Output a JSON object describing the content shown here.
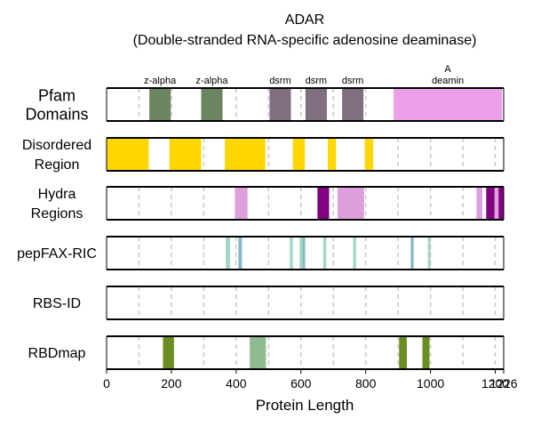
{
  "chart_data": {
    "type": "bar",
    "title": "ADAR",
    "subtitle": "(Double-stranded RNA-specific adenosine deaminase)",
    "xlabel": "Protein Length",
    "xlim": [
      0,
      1226
    ],
    "protein_length": 1226,
    "grid": true,
    "xticks": [
      0,
      200,
      400,
      600,
      800,
      1000,
      1200,
      1226
    ],
    "xtick_labels": [
      "0",
      "200",
      "400",
      "600",
      "800",
      "1000",
      "1200",
      "1226"
    ],
    "grid_lines": [
      100,
      200,
      300,
      400,
      500,
      600,
      700,
      800,
      900,
      1000,
      1100,
      1200
    ],
    "tracks": [
      {
        "label_lines": [
          "Pfam",
          "Domains"
        ],
        "segments": [
          {
            "start": 132,
            "end": 198,
            "color": "#6b8560",
            "name": "z-alpha"
          },
          {
            "start": 292,
            "end": 358,
            "color": "#6b8560",
            "name": "z-alpha"
          },
          {
            "start": 503,
            "end": 569,
            "color": "#80707f",
            "name": "dsrm"
          },
          {
            "start": 614,
            "end": 680,
            "color": "#80707f",
            "name": "dsrm"
          },
          {
            "start": 727,
            "end": 793,
            "color": "#80707f",
            "name": "dsrm"
          },
          {
            "start": 886,
            "end": 1221,
            "color": "#eca0ea",
            "name": "A\ndeamin"
          }
        ]
      },
      {
        "label_lines": [
          "Disordered",
          "Region"
        ],
        "segments": [
          {
            "start": 1,
            "end": 130,
            "color": "#ffd700"
          },
          {
            "start": 194,
            "end": 292,
            "color": "#ffd700"
          },
          {
            "start": 365,
            "end": 490,
            "color": "#ffd700"
          },
          {
            "start": 575,
            "end": 612,
            "color": "#ffd700"
          },
          {
            "start": 683,
            "end": 708,
            "color": "#ffd700"
          },
          {
            "start": 797,
            "end": 823,
            "color": "#ffd700"
          }
        ]
      },
      {
        "label_lines": [
          "Hydra",
          "Regions"
        ],
        "segments": [
          {
            "start": 396,
            "end": 435,
            "color": "#dda0dd"
          },
          {
            "start": 651,
            "end": 687,
            "color": "#800080"
          },
          {
            "start": 713,
            "end": 795,
            "color": "#dda0dd"
          },
          {
            "start": 1142,
            "end": 1160,
            "color": "#dda0dd"
          },
          {
            "start": 1172,
            "end": 1198,
            "color": "#800080"
          },
          {
            "start": 1198,
            "end": 1210,
            "color": "#dda0dd"
          },
          {
            "start": 1210,
            "end": 1226,
            "color": "#800080"
          }
        ]
      },
      {
        "label_lines": [
          "pepFAX-RIC"
        ],
        "segments": [
          {
            "start": 368,
            "end": 381,
            "color": "#9fd6c2"
          },
          {
            "start": 407,
            "end": 418,
            "color": "#85b9c7"
          },
          {
            "start": 566,
            "end": 575,
            "color": "#9fd6c2"
          },
          {
            "start": 596,
            "end": 605,
            "color": "#9fd6c2"
          },
          {
            "start": 605,
            "end": 613,
            "color": "#85b9c7"
          },
          {
            "start": 669,
            "end": 678,
            "color": "#9fd6c2"
          },
          {
            "start": 761,
            "end": 770,
            "color": "#9fd6c2"
          },
          {
            "start": 939,
            "end": 948,
            "color": "#85b9c7"
          },
          {
            "start": 992,
            "end": 1000,
            "color": "#9fd6c2"
          }
        ]
      },
      {
        "label_lines": [
          "RBS-ID"
        ],
        "segments": []
      },
      {
        "label_lines": [
          "RBDmap"
        ],
        "segments": [
          {
            "start": 174,
            "end": 208,
            "color": "#6b8e23"
          },
          {
            "start": 442,
            "end": 492,
            "color": "#8fbc8f"
          },
          {
            "start": 903,
            "end": 927,
            "color": "#6b8e23"
          },
          {
            "start": 975,
            "end": 997,
            "color": "#6b8e23"
          }
        ]
      }
    ]
  }
}
